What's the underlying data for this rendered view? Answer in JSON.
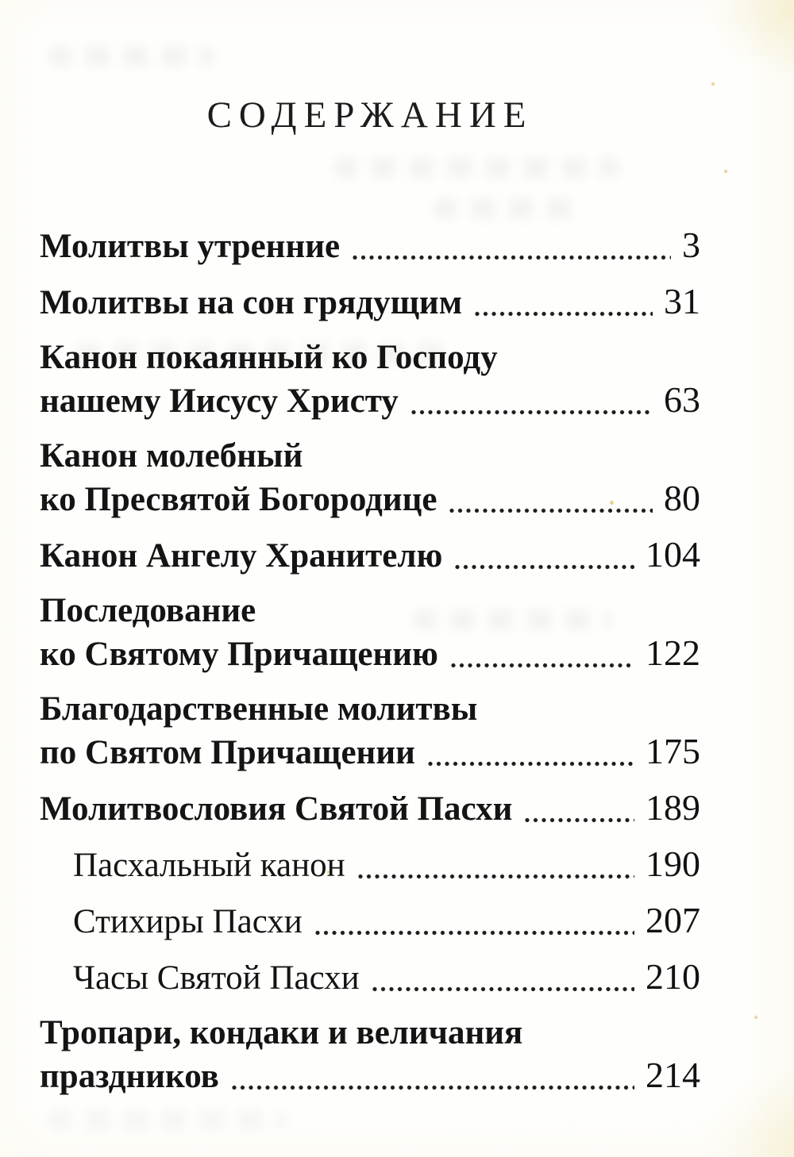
{
  "page": {
    "title": "СОДЕРЖАНИЕ"
  },
  "toc": {
    "entries": [
      {
        "level": 1,
        "lines": [
          "Молитвы утренние"
        ],
        "page": "3"
      },
      {
        "level": 1,
        "lines": [
          "Молитвы на сон грядущим"
        ],
        "page": "31"
      },
      {
        "level": 1,
        "lines": [
          "Канон покаянный ко Господу",
          "нашему Иисусу Христу"
        ],
        "page": "63"
      },
      {
        "level": 1,
        "lines": [
          "Канон молебный",
          "ко Пресвятой Богородице"
        ],
        "page": "80"
      },
      {
        "level": 1,
        "lines": [
          "Канон Ангелу Хранителю"
        ],
        "page": "104"
      },
      {
        "level": 1,
        "lines": [
          "Последование",
          "ко Святому Причащению"
        ],
        "page": "122"
      },
      {
        "level": 1,
        "lines": [
          "Благодарственные молитвы",
          "по Святом Причащении"
        ],
        "page": "175"
      },
      {
        "level": 1,
        "lines": [
          "Молитвословия Святой Пасхи"
        ],
        "page": "189"
      },
      {
        "level": 2,
        "lines": [
          "Пасхальный канон"
        ],
        "page": "190"
      },
      {
        "level": 2,
        "lines": [
          "Стихиры Пасхи"
        ],
        "page": "207"
      },
      {
        "level": 2,
        "lines": [
          "Часы Святой Пасхи"
        ],
        "page": "210"
      },
      {
        "level": 1,
        "lines": [
          "Тропари, кондаки и величания",
          "праздников"
        ],
        "page": "214"
      }
    ]
  }
}
